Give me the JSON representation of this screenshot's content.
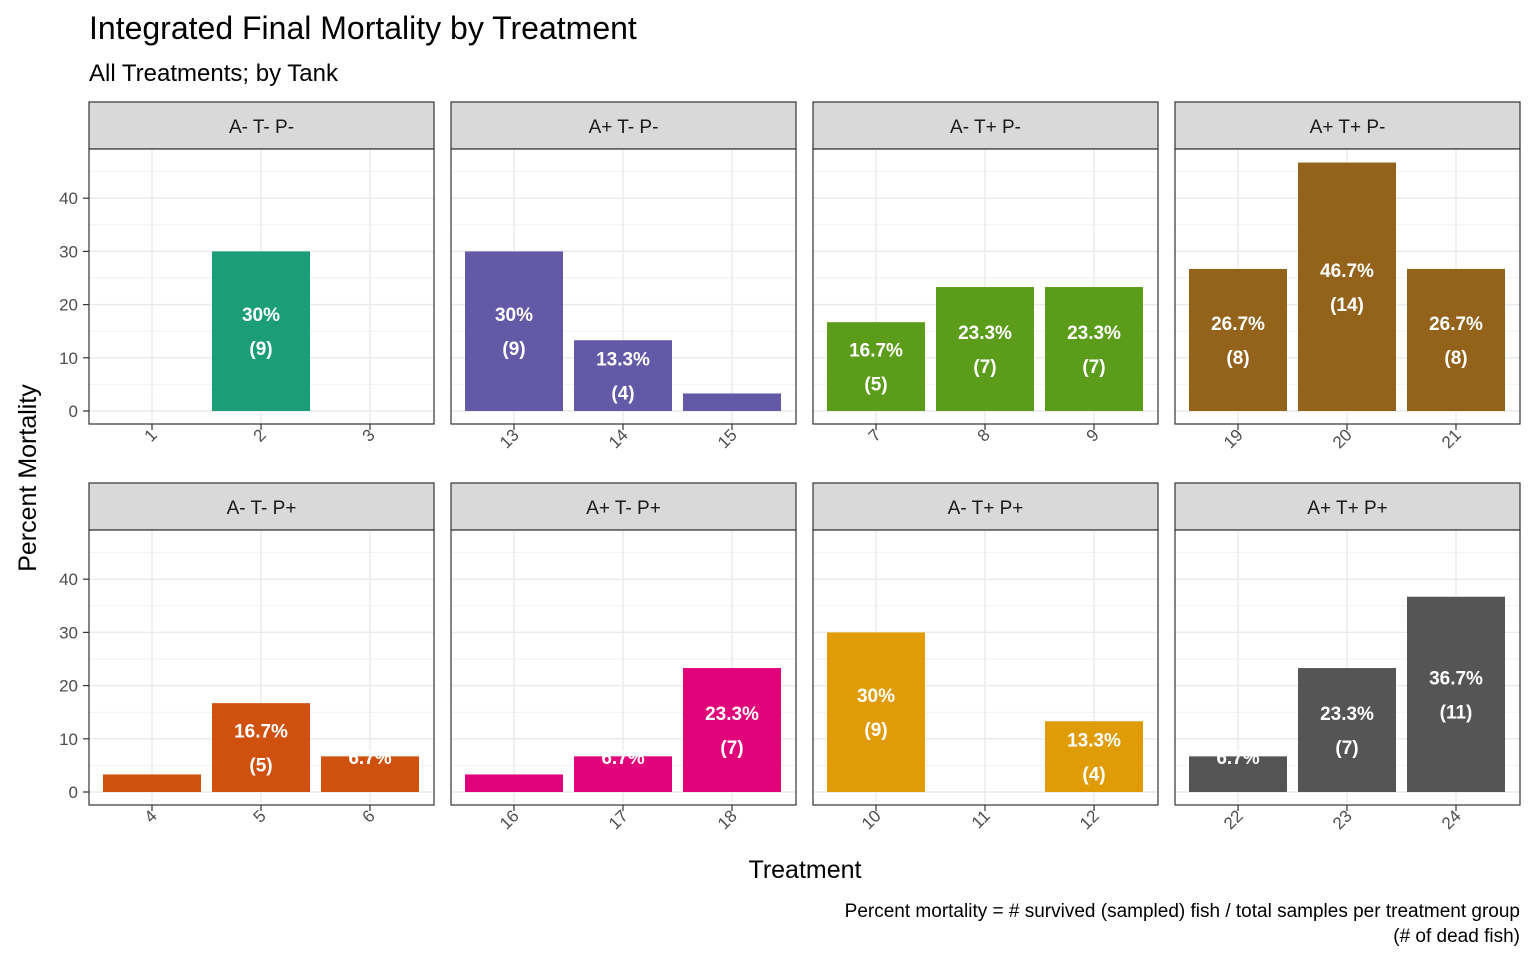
{
  "chart_data": {
    "type": "bar",
    "title": "Integrated Final Mortality by Treatment",
    "subtitle": "All Treatments; by Tank",
    "xlabel": "Treatment",
    "ylabel": "Percent Mortality",
    "caption_line1": "Percent mortality = # survived (sampled) fish / total samples per treatment group",
    "caption_line2": "(# of dead fish)",
    "ylim": [
      0,
      50
    ],
    "yticks": [
      "0",
      "10",
      "20",
      "30",
      "40"
    ],
    "grid": true,
    "legend": "none",
    "panels": [
      {
        "name": "A- T- P-",
        "color": "#1b9e77",
        "categories": [
          "1",
          "2",
          "3"
        ],
        "values": [
          0,
          30,
          0
        ],
        "labels": [
          "",
          "30%",
          ""
        ],
        "counts": [
          "",
          "(9)",
          ""
        ]
      },
      {
        "name": "A+ T- P-",
        "color": "#6359a6",
        "categories": [
          "13",
          "14",
          "15"
        ],
        "values": [
          30,
          13.3,
          3.3
        ],
        "labels": [
          "30%",
          "13.3%",
          ""
        ],
        "counts": [
          "(9)",
          "(4)",
          ""
        ]
      },
      {
        "name": "A- T+ P-",
        "color": "#5b9d1b",
        "categories": [
          "7",
          "8",
          "9"
        ],
        "values": [
          16.7,
          23.3,
          23.3
        ],
        "labels": [
          "16.7%",
          "23.3%",
          "23.3%"
        ],
        "counts": [
          "(5)",
          "(7)",
          "(7)"
        ]
      },
      {
        "name": "A+ T+ P-",
        "color": "#93621b",
        "categories": [
          "19",
          "20",
          "21"
        ],
        "values": [
          26.7,
          46.7,
          26.7
        ],
        "labels": [
          "26.7%",
          "46.7%",
          "26.7%"
        ],
        "counts": [
          "(8)",
          "(14)",
          "(8)"
        ]
      },
      {
        "name": "A- T- P+",
        "color": "#d0500d",
        "categories": [
          "4",
          "5",
          "6"
        ],
        "values": [
          3.3,
          16.7,
          6.7
        ],
        "labels": [
          "",
          "16.7%",
          "6.7%"
        ],
        "counts": [
          "",
          "(5)",
          ""
        ]
      },
      {
        "name": "A+ T- P+",
        "color": "#e0037a",
        "categories": [
          "16",
          "17",
          "18"
        ],
        "values": [
          3.3,
          6.7,
          23.3
        ],
        "labels": [
          "",
          "6.7%",
          "23.3%"
        ],
        "counts": [
          "",
          "",
          "(7)"
        ]
      },
      {
        "name": "A- T+ P+",
        "color": "#e09c07",
        "categories": [
          "10",
          "11",
          "12"
        ],
        "values": [
          30,
          0,
          13.3
        ],
        "labels": [
          "30%",
          "",
          "13.3%"
        ],
        "counts": [
          "(9)",
          "",
          "(4)"
        ]
      },
      {
        "name": "A+ T+ P+",
        "color": "#555555",
        "categories": [
          "22",
          "23",
          "24"
        ],
        "values": [
          6.7,
          23.3,
          36.7
        ],
        "labels": [
          "6.7%",
          "23.3%",
          "36.7%"
        ],
        "counts": [
          "",
          "(7)",
          "(11)"
        ]
      }
    ]
  }
}
